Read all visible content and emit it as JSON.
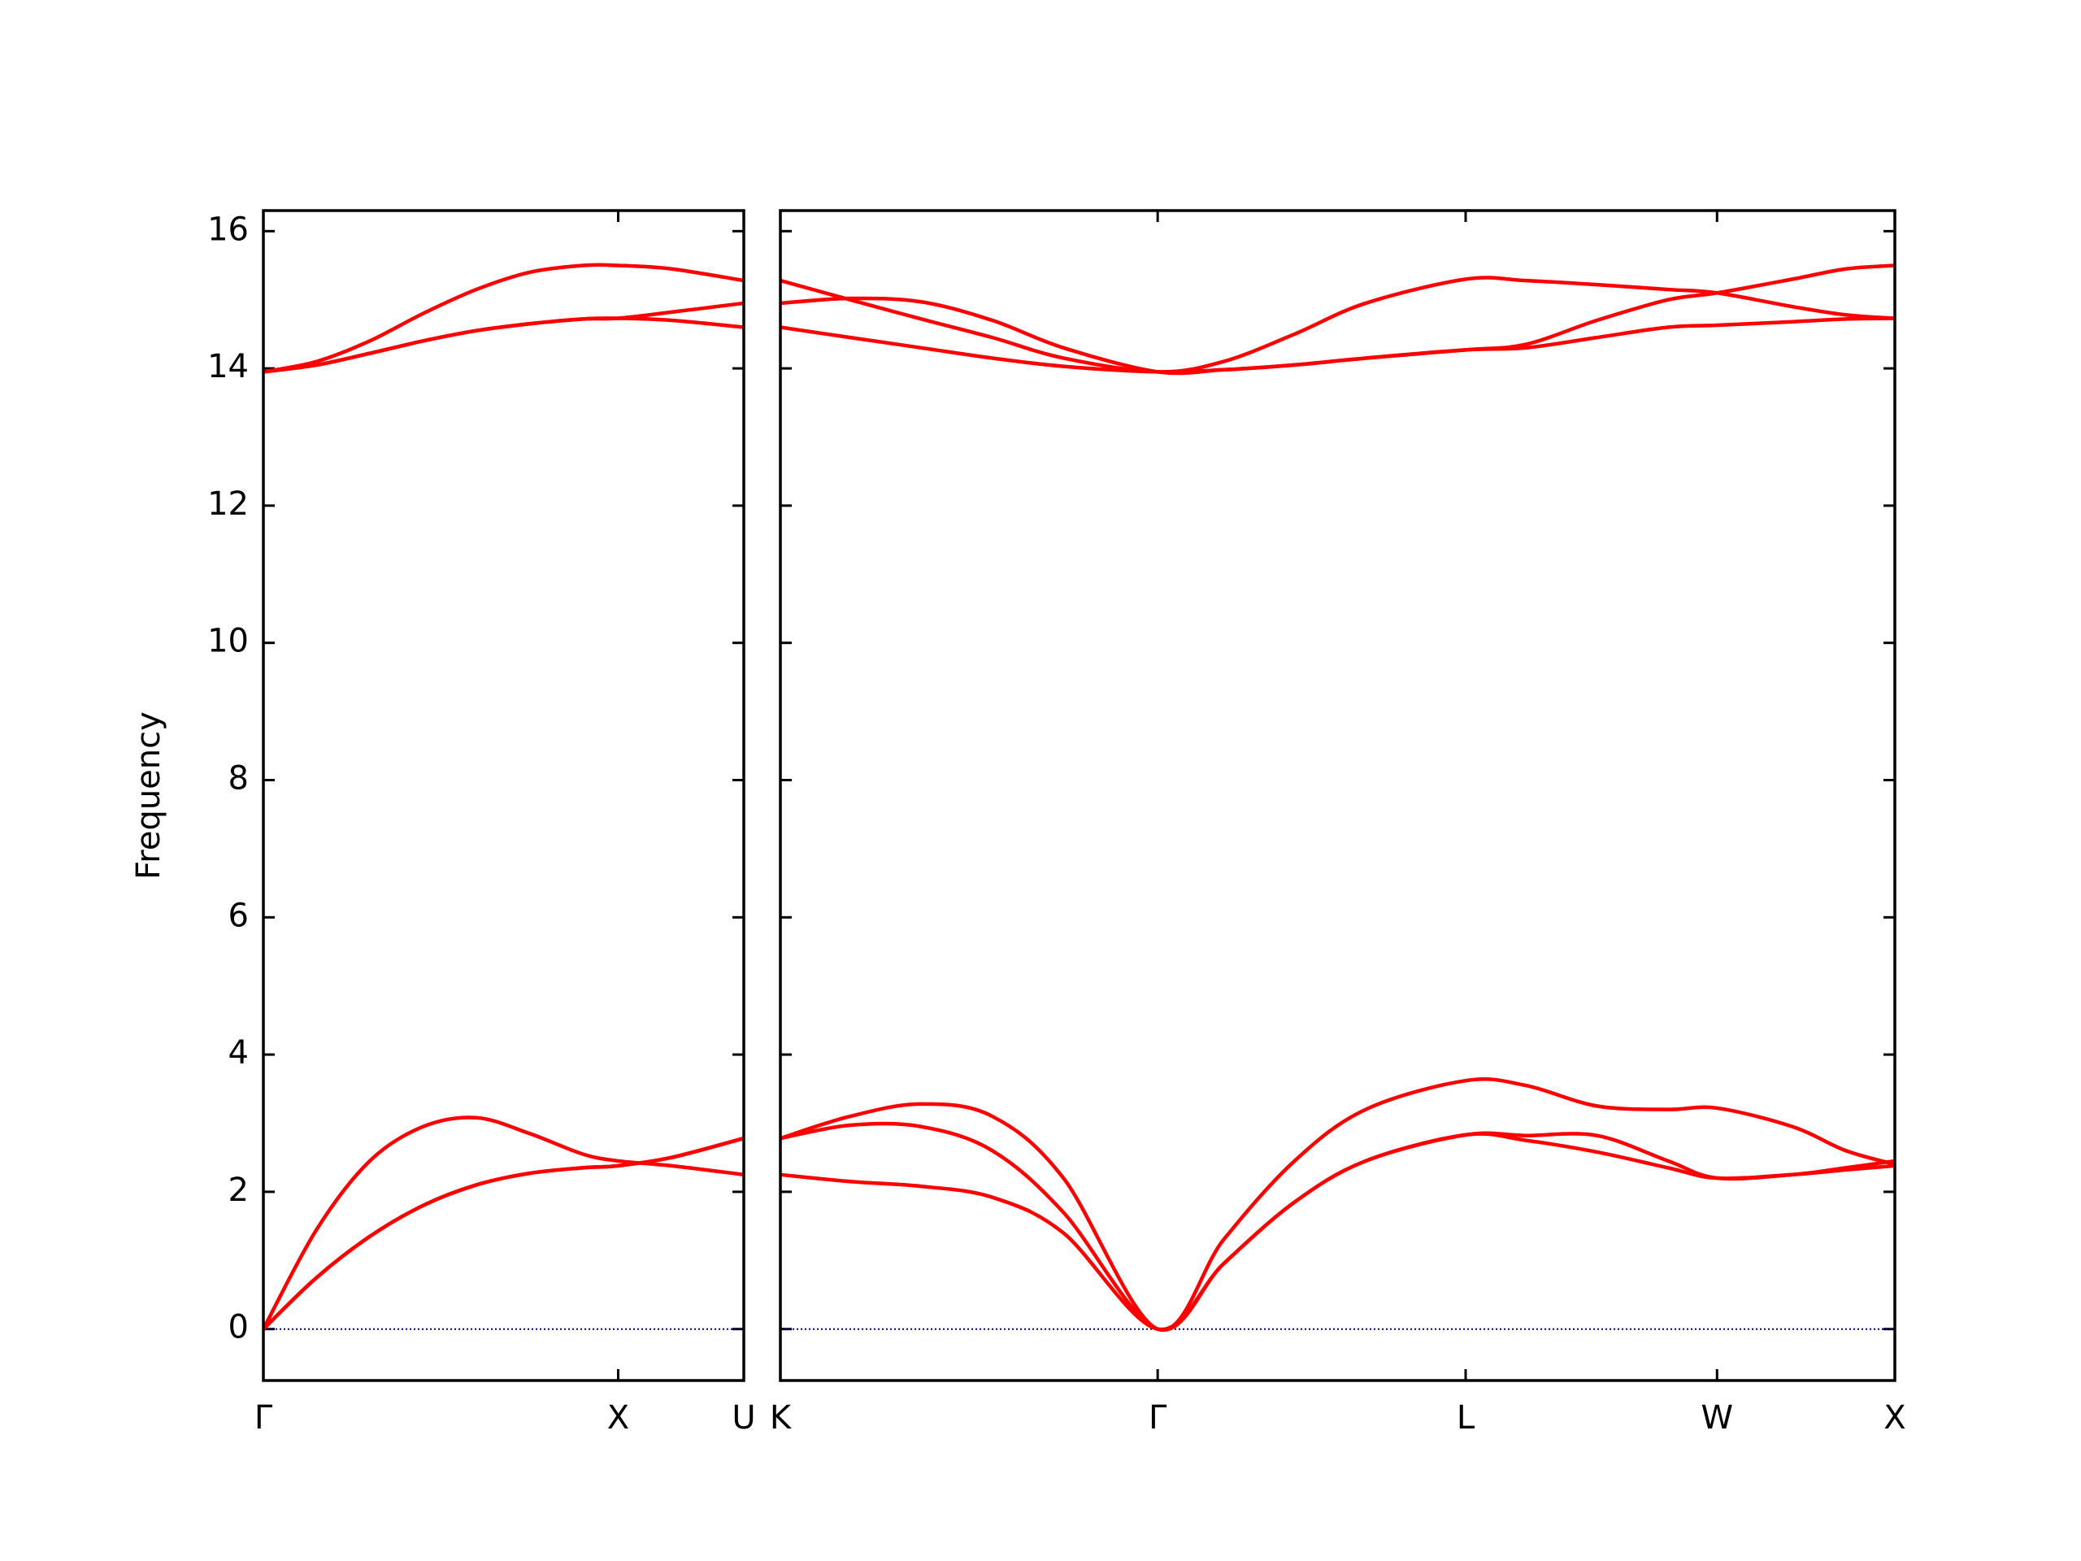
{
  "chart_data": [
    {
      "type": "line",
      "ylabel": "Frequency",
      "x": [
        0,
        0.15,
        0.3,
        0.45,
        0.6,
        0.75,
        0.9,
        1.0,
        1.15,
        1.354
      ],
      "xlim": [
        0,
        1.354
      ],
      "xticks": [
        {
          "value": 0,
          "label": "Γ"
        },
        {
          "value": 1.0,
          "label": "X"
        },
        {
          "value": 1.354,
          "label": "U"
        }
      ],
      "ylim": [
        -0.75,
        16.3
      ],
      "yticks": [
        0,
        2,
        4,
        6,
        8,
        10,
        12,
        14,
        16
      ],
      "show_ytick_labels": true,
      "hline": 0,
      "hline_color": "#00008b",
      "series": [
        {
          "color": "#ff0000",
          "values": [
            0,
            0.75,
            1.35,
            1.8,
            2.1,
            2.27,
            2.35,
            2.38,
            2.5,
            2.78
          ]
        },
        {
          "color": "#ff0000",
          "values": [
            0,
            0.75,
            1.35,
            1.8,
            2.1,
            2.27,
            2.35,
            2.38,
            2.5,
            2.78
          ]
        },
        {
          "color": "#ff0000",
          "values": [
            0,
            1.45,
            2.45,
            2.95,
            3.08,
            2.85,
            2.55,
            2.45,
            2.38,
            2.25
          ]
        },
        {
          "color": "#ff0000",
          "values": [
            13.95,
            14.1,
            14.4,
            14.8,
            15.15,
            15.4,
            15.5,
            15.5,
            15.45,
            15.28
          ]
        },
        {
          "color": "#ff0000",
          "values": [
            13.95,
            14.05,
            14.22,
            14.4,
            14.55,
            14.65,
            14.72,
            14.73,
            14.82,
            14.95
          ]
        },
        {
          "color": "#ff0000",
          "values": [
            13.95,
            14.05,
            14.22,
            14.4,
            14.55,
            14.65,
            14.72,
            14.73,
            14.7,
            14.6
          ]
        }
      ]
    },
    {
      "type": "line",
      "x": [
        1.354,
        1.55,
        1.75,
        1.95,
        2.15,
        2.415,
        2.6,
        2.8,
        3.0,
        3.281,
        3.45,
        3.65,
        3.85,
        3.988,
        4.2,
        4.35,
        4.488
      ],
      "xlim": [
        1.354,
        4.488
      ],
      "xticks": [
        {
          "value": 1.354,
          "label": "K"
        },
        {
          "value": 2.415,
          "label": "Γ"
        },
        {
          "value": 3.281,
          "label": "L"
        },
        {
          "value": 3.988,
          "label": "W"
        },
        {
          "value": 4.488,
          "label": "X"
        }
      ],
      "ylim": [
        -0.75,
        16.3
      ],
      "yticks": [
        0,
        2,
        4,
        6,
        8,
        10,
        12,
        14,
        16
      ],
      "show_ytick_labels": false,
      "hline": 0,
      "hline_color": "#00008b",
      "series": [
        {
          "color": "#ff0000",
          "values": [
            2.78,
            3.1,
            3.28,
            3.1,
            2.2,
            0,
            1.3,
            2.45,
            3.2,
            3.62,
            3.55,
            3.25,
            3.2,
            3.22,
            2.95,
            2.6,
            2.4
          ]
        },
        {
          "color": "#ff0000",
          "values": [
            2.78,
            2.97,
            2.95,
            2.6,
            1.7,
            0,
            0.95,
            1.85,
            2.45,
            2.83,
            2.82,
            2.82,
            2.45,
            2.2,
            2.25,
            2.35,
            2.45
          ]
        },
        {
          "color": "#ff0000",
          "values": [
            2.25,
            2.15,
            2.08,
            1.92,
            1.4,
            0,
            0.95,
            1.85,
            2.45,
            2.83,
            2.75,
            2.58,
            2.35,
            2.2,
            2.25,
            2.32,
            2.38
          ]
        },
        {
          "color": "#ff0000",
          "values": [
            15.28,
            15.0,
            14.72,
            14.45,
            14.15,
            13.95,
            14.1,
            14.5,
            14.95,
            15.3,
            15.28,
            15.22,
            15.15,
            15.1,
            14.9,
            14.78,
            14.73
          ]
        },
        {
          "color": "#ff0000",
          "values": [
            14.95,
            15.02,
            14.97,
            14.7,
            14.3,
            13.95,
            13.98,
            14.05,
            14.15,
            14.27,
            14.35,
            14.7,
            15.0,
            15.1,
            15.3,
            15.45,
            15.5
          ]
        },
        {
          "color": "#ff0000",
          "values": [
            14.6,
            14.45,
            14.3,
            14.15,
            14.03,
            13.95,
            13.98,
            14.05,
            14.15,
            14.27,
            14.3,
            14.45,
            14.6,
            14.63,
            14.68,
            14.72,
            14.73
          ]
        }
      ]
    }
  ]
}
